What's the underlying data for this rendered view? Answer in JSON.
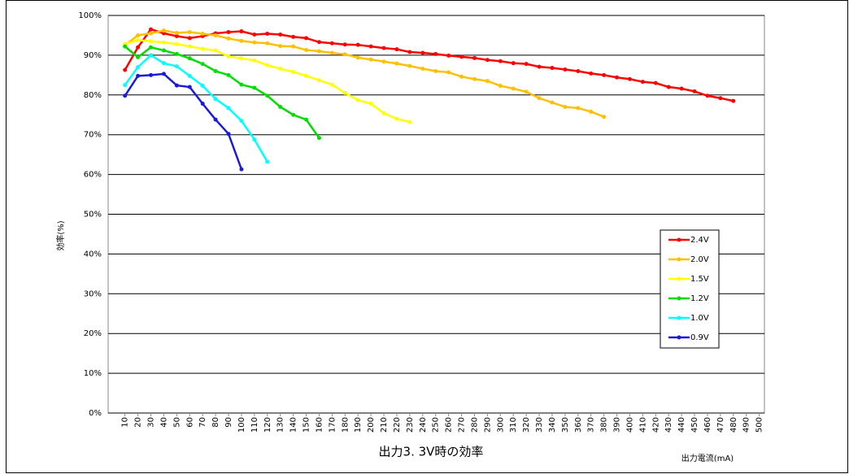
{
  "chart_data": {
    "type": "line",
    "title": "出力3. 3V時の効率",
    "x_label": "出力電流(mA)",
    "y_label": "効率(%)",
    "x": [
      10,
      20,
      30,
      40,
      50,
      60,
      70,
      80,
      90,
      100,
      110,
      120,
      130,
      140,
      150,
      160,
      170,
      180,
      190,
      200,
      210,
      220,
      230,
      240,
      250,
      260,
      270,
      280,
      290,
      300,
      310,
      320,
      330,
      340,
      350,
      360,
      370,
      380,
      390,
      400,
      410,
      420,
      430,
      440,
      450,
      460,
      470,
      480,
      490,
      500
    ],
    "xlim": [
      -3,
      504
    ],
    "ylim": [
      0,
      100
    ],
    "yticks": [
      {
        "value": 0,
        "label": "0%"
      },
      {
        "value": 10,
        "label": "10%"
      },
      {
        "value": 20,
        "label": "20%"
      },
      {
        "value": 30,
        "label": "30%"
      },
      {
        "value": 40,
        "label": "40%"
      },
      {
        "value": 50,
        "label": "50%"
      },
      {
        "value": 60,
        "label": "60%"
      },
      {
        "value": 70,
        "label": "70%"
      },
      {
        "value": 80,
        "label": "80%"
      },
      {
        "value": 90,
        "label": "90%"
      },
      {
        "value": 100,
        "label": "100%"
      }
    ],
    "grid": true,
    "legend": "right",
    "series": [
      {
        "name": "2.4V",
        "color": "#ff0000",
        "values": [
          86.3,
          92,
          96.5,
          95.5,
          94.8,
          94.3,
          94.8,
          95.5,
          95.8,
          96.0,
          95.2,
          95.4,
          95.2,
          94.6,
          94.3,
          93.3,
          93.0,
          92.7,
          92.6,
          92.2,
          91.8,
          91.5,
          90.8,
          90.6,
          90.3,
          89.9,
          89.6,
          89.3,
          88.8,
          88.5,
          88.0,
          87.8,
          87.1,
          86.8,
          86.4,
          86.0,
          85.4,
          85.0,
          84.4,
          84.0,
          83.3,
          83.0,
          82.0,
          81.6,
          80.9,
          79.8,
          79.2,
          78.5,
          null,
          null
        ]
      },
      {
        "name": "2.0V",
        "color": "#ffc000",
        "values": [
          92.5,
          95.0,
          95.5,
          96.2,
          95.6,
          95.8,
          95.4,
          95.0,
          94.2,
          93.6,
          93.2,
          93.0,
          92.3,
          92.2,
          91.3,
          91.0,
          90.6,
          90.2,
          89.4,
          88.9,
          88.4,
          87.9,
          87.3,
          86.6,
          86.0,
          85.7,
          84.6,
          84.0,
          83.5,
          82.3,
          81.6,
          80.8,
          79.2,
          78.1,
          77.0,
          76.7,
          75.8,
          74.5,
          null,
          null,
          null,
          null,
          null,
          null,
          null,
          null,
          null,
          null,
          null,
          null
        ]
      },
      {
        "name": "1.5V",
        "color": "#ffff00",
        "values": [
          92.8,
          93.8,
          93.5,
          93.2,
          92.8,
          92.2,
          91.6,
          91.2,
          89.7,
          89.2,
          88.7,
          87.5,
          86.6,
          85.8,
          84.8,
          83.7,
          82.6,
          80.5,
          78.7,
          77.8,
          75.4,
          74.0,
          73.2,
          null,
          null,
          null,
          null,
          null,
          null,
          null,
          null,
          null,
          null,
          null,
          null,
          null,
          null,
          null,
          null,
          null,
          null,
          null,
          null,
          null,
          null,
          null,
          null,
          null,
          null,
          null
        ]
      },
      {
        "name": "1.2V",
        "color": "#00dd00",
        "values": [
          92.2,
          89.5,
          92.0,
          91.2,
          90.3,
          89.2,
          87.8,
          86.0,
          85.0,
          82.6,
          81.8,
          79.8,
          77.0,
          75.0,
          73.8,
          69.2,
          null,
          null,
          null,
          null,
          null,
          null,
          null,
          null,
          null,
          null,
          null,
          null,
          null,
          null,
          null,
          null,
          null,
          null,
          null,
          null,
          null,
          null,
          null,
          null,
          null,
          null,
          null,
          null,
          null,
          null,
          null,
          null,
          null,
          null
        ]
      },
      {
        "name": "1.0V",
        "color": "#00ffff",
        "values": [
          82.5,
          87.0,
          90.0,
          88.0,
          87.2,
          84.8,
          82.3,
          79.0,
          76.7,
          73.5,
          68.8,
          63.2,
          null,
          null,
          null,
          null,
          null,
          null,
          null,
          null,
          null,
          null,
          null,
          null,
          null,
          null,
          null,
          null,
          null,
          null,
          null,
          null,
          null,
          null,
          null,
          null,
          null,
          null,
          null,
          null,
          null,
          null,
          null,
          null,
          null,
          null,
          null,
          null,
          null,
          null
        ]
      },
      {
        "name": "0.9V",
        "color": "#1a1adc",
        "values": [
          79.8,
          84.8,
          85.0,
          85.3,
          82.4,
          82.0,
          77.8,
          73.8,
          70.2,
          61.3,
          null,
          null,
          null,
          null,
          null,
          null,
          null,
          null,
          null,
          null,
          null,
          null,
          null,
          null,
          null,
          null,
          null,
          null,
          null,
          null,
          null,
          null,
          null,
          null,
          null,
          null,
          null,
          null,
          null,
          null,
          null,
          null,
          null,
          null,
          null,
          null,
          null,
          null,
          null,
          null
        ]
      }
    ]
  }
}
